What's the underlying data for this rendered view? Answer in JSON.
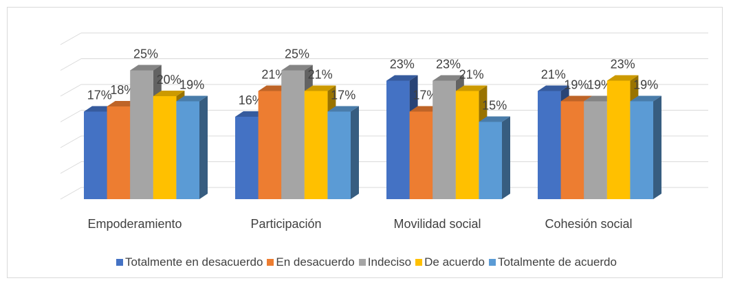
{
  "chart_data": {
    "type": "bar3d",
    "categories": [
      "Empoderamiento",
      "Participación",
      "Movilidad social",
      "Cohesión social"
    ],
    "series": [
      {
        "name": "Totalmente en desacuerdo",
        "color": "#4472c4",
        "values": [
          17,
          16,
          23,
          21
        ],
        "value_labels": [
          "17%",
          "16%",
          "23%",
          "21%"
        ]
      },
      {
        "name": "En desacuerdo",
        "color": "#ed7d31",
        "values": [
          18,
          21,
          17,
          19
        ],
        "value_labels": [
          "18%",
          "21%",
          "17%",
          "19%"
        ]
      },
      {
        "name": "Indeciso",
        "color": "#a5a5a5",
        "values": [
          25,
          25,
          23,
          19
        ],
        "value_labels": [
          "25%",
          "25%",
          "23%",
          "19%"
        ]
      },
      {
        "name": "De acuerdo",
        "color": "#ffc000",
        "values": [
          20,
          21,
          21,
          23
        ],
        "value_labels": [
          "20%",
          "21%",
          "21%",
          "23%"
        ]
      },
      {
        "name": "Totalmente de acuerdo",
        "color": "#5b9bd5",
        "values": [
          19,
          17,
          15,
          19
        ],
        "value_labels": [
          "19%",
          "17%",
          "15%",
          "19%"
        ]
      }
    ],
    "ylim": [
      0,
      30
    ],
    "yticks": [
      0,
      5,
      10,
      15,
      20,
      25,
      30
    ],
    "grid": true,
    "legend": "bottom"
  }
}
